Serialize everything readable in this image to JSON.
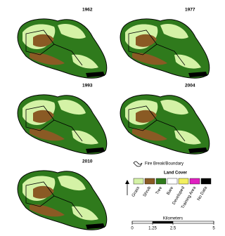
{
  "panels": [
    {
      "year": "1962"
    },
    {
      "year": "1977"
    },
    {
      "year": "1993"
    },
    {
      "year": "2004"
    },
    {
      "year": "2010"
    }
  ],
  "legend": {
    "boundary_label": "Fire Break/Boundary",
    "title": "Land Cover",
    "classes": [
      {
        "label": "Grass",
        "color": "#d4f2a6"
      },
      {
        "label": "Shrub",
        "color": "#8a5a24"
      },
      {
        "label": "Tree",
        "color": "#2f7a1c"
      },
      {
        "label": "Bare",
        "color": "#ffffff"
      },
      {
        "label": "Developed",
        "color": "#f2f060"
      },
      {
        "label": "Training Area",
        "color": "#e020c0"
      },
      {
        "label": "No Data",
        "color": "#000000"
      }
    ]
  },
  "scale": {
    "title": "Kilometers",
    "ticks": [
      0,
      1.25,
      2.5,
      5
    ]
  }
}
